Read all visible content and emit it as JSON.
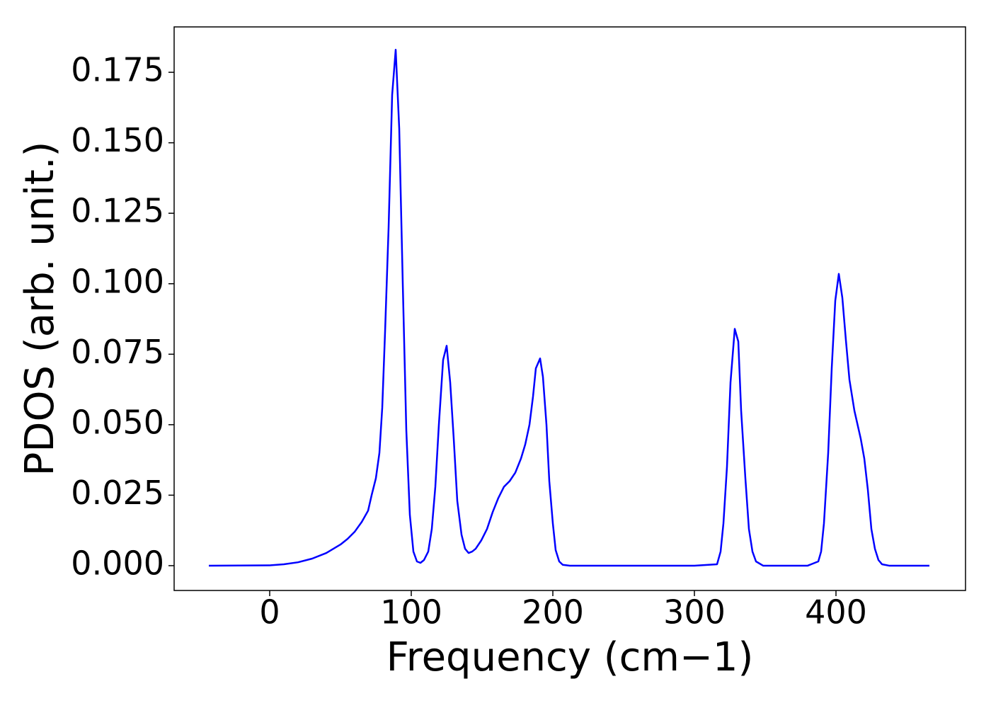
{
  "chart_data": {
    "type": "line",
    "xlabel": "Frequency (cm−1)",
    "ylabel": "PDOS (arb. unit.)",
    "xlim": [
      -67.5,
      491.5
    ],
    "ylim": [
      -0.0088,
      0.1911
    ],
    "xticks": [
      0,
      100,
      200,
      300,
      400
    ],
    "yticks": [
      {
        "value": 0,
        "label": "0.000"
      },
      {
        "value": 0.025,
        "label": "0.025"
      },
      {
        "value": 0.05,
        "label": "0.050"
      },
      {
        "value": 0.075,
        "label": "0.075"
      },
      {
        "value": 0.1,
        "label": "0.100"
      },
      {
        "value": 0.125,
        "label": "0.125"
      },
      {
        "value": 0.15,
        "label": "0.150"
      },
      {
        "value": 0.175,
        "label": "0.175"
      }
    ],
    "grid": false,
    "series": [
      {
        "color": "#0000ff",
        "x": [
          -43,
          0,
          10,
          20,
          30,
          40,
          50,
          55,
          60,
          65,
          69.5,
          72,
          75,
          77.5,
          79.5,
          81.5,
          84,
          86.5,
          89,
          91.5,
          94,
          96.5,
          99,
          101.5,
          104,
          106.5,
          109,
          112,
          114.5,
          117,
          119.5,
          122.5,
          125,
          127.5,
          130,
          132.5,
          135.5,
          138,
          140.5,
          143,
          145.5,
          149.5,
          153.5,
          157.5,
          161.5,
          165.5,
          169.5,
          173.5,
          177.5,
          180.5,
          183.5,
          186,
          188,
          191,
          193,
          195.5,
          197.5,
          200,
          202,
          204.5,
          207,
          212,
          300,
          316,
          318.5,
          320.5,
          323,
          325.5,
          328.5,
          331,
          333,
          336,
          338.5,
          341,
          343.5,
          348.5,
          380,
          387.5,
          389.5,
          391.5,
          394.5,
          397,
          399.5,
          402,
          404.5,
          407,
          409.5,
          413,
          417.5,
          420,
          422.5,
          425,
          427.5,
          430,
          432.5,
          437.5,
          466
        ],
        "values": [
          0,
          0.0001,
          0.0005,
          0.0012,
          0.0025,
          0.0045,
          0.0075,
          0.0095,
          0.012,
          0.0155,
          0.0195,
          0.025,
          0.031,
          0.04,
          0.056,
          0.083,
          0.12,
          0.167,
          0.183,
          0.155,
          0.1,
          0.048,
          0.018,
          0.005,
          0.0015,
          0.001,
          0.002,
          0.005,
          0.013,
          0.028,
          0.05,
          0.073,
          0.078,
          0.065,
          0.045,
          0.023,
          0.011,
          0.006,
          0.0045,
          0.005,
          0.006,
          0.009,
          0.013,
          0.019,
          0.024,
          0.028,
          0.03,
          0.033,
          0.038,
          0.043,
          0.05,
          0.06,
          0.07,
          0.0735,
          0.067,
          0.05,
          0.03,
          0.015,
          0.0055,
          0.0015,
          0.0003,
          0,
          0,
          0.0005,
          0.005,
          0.015,
          0.035,
          0.065,
          0.084,
          0.0795,
          0.055,
          0.031,
          0.013,
          0.005,
          0.0015,
          0,
          0,
          0.0015,
          0.005,
          0.015,
          0.04,
          0.07,
          0.094,
          0.1035,
          0.095,
          0.08,
          0.066,
          0.055,
          0.045,
          0.038,
          0.027,
          0.013,
          0.006,
          0.002,
          0.0005,
          0,
          0
        ]
      }
    ]
  }
}
